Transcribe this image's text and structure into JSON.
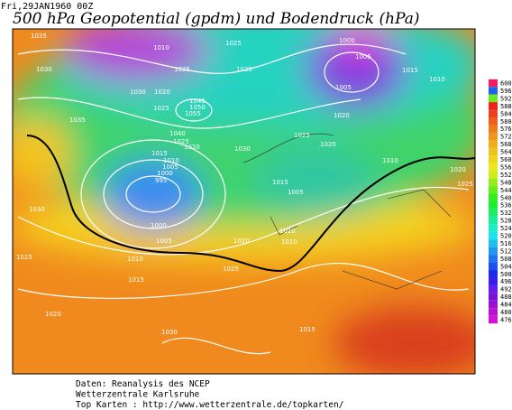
{
  "header": {
    "timestamp": "Fri,29JAN1960 00Z",
    "title": "500 hPa Geopotential (gpdm) und Bodendruck (hPa)"
  },
  "colorbar": {
    "ticks": [
      600,
      596,
      592,
      588,
      584,
      580,
      576,
      572,
      568,
      564,
      560,
      556,
      552,
      548,
      544,
      540,
      536,
      532,
      528,
      524,
      520,
      516,
      512,
      508,
      504,
      500,
      496,
      492,
      488,
      484,
      480,
      476
    ]
  },
  "isobar_labels": [
    "1035",
    "1010",
    "1025",
    "1000",
    "1005",
    "1030",
    "1035",
    "1025",
    "1015",
    "1010",
    "1030",
    "1020",
    "1005",
    "1045",
    "1050",
    "1055",
    "1025",
    "1020",
    "1035",
    "1040",
    "1025",
    "1020",
    "1030",
    "1025",
    "1020",
    "1010",
    "1015",
    "1010",
    "1005",
    "1000",
    "995",
    "1015",
    "1005",
    "1020",
    "1025",
    "1030",
    "1000",
    "1010",
    "1005",
    "1020",
    "1010",
    "1010",
    "1025",
    "1015",
    "1025",
    "1020",
    "1030",
    "1015"
  ],
  "footer": {
    "lines": [
      "Daten: Reanalysis des NCEP",
      "Wetterzentrale Karlsruhe",
      "Top Karten :  http://www.wetterzentrale.de/topkarten/"
    ]
  }
}
